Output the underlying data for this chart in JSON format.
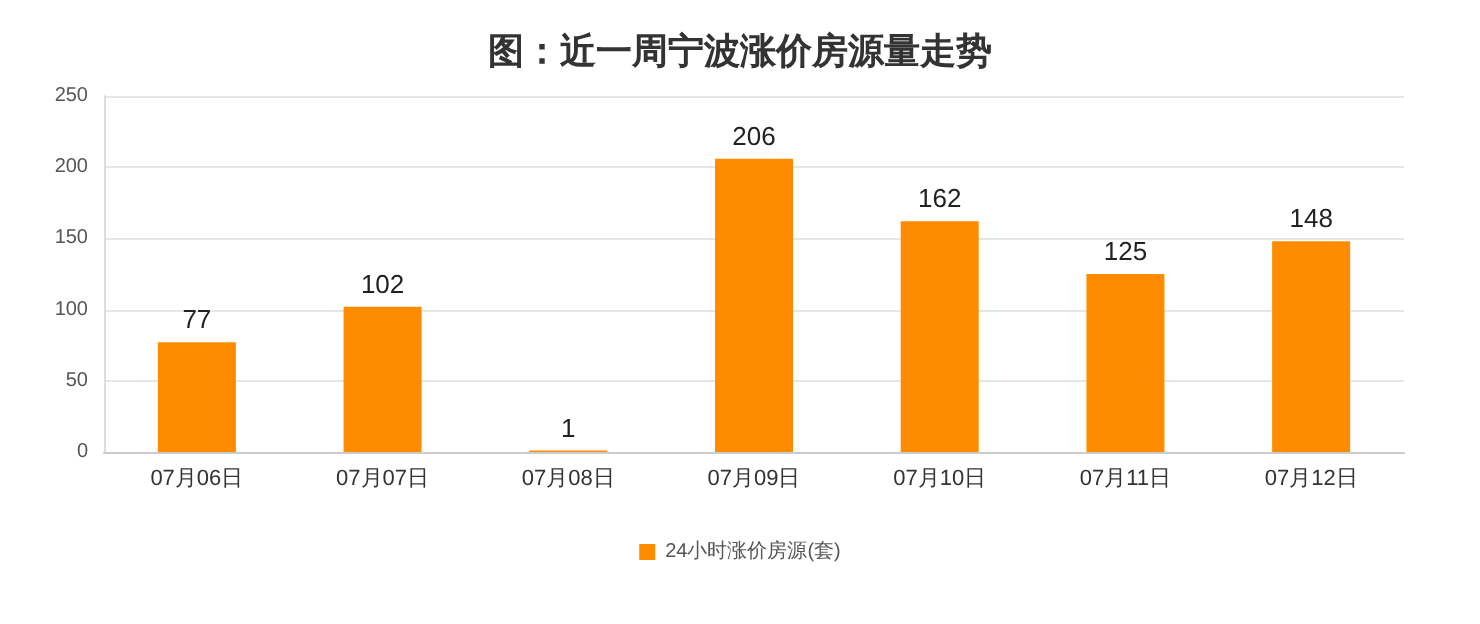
{
  "chart_data": {
    "type": "bar",
    "title": "图：近一周宁波涨价房源量走势",
    "categories": [
      "07月06日",
      "07月07日",
      "07月08日",
      "07月09日",
      "07月10日",
      "07月11日",
      "07月12日"
    ],
    "series": [
      {
        "name": "24小时涨价房源(套)",
        "color": "#ff8c00",
        "values": [
          77,
          102,
          1,
          206,
          162,
          125,
          148
        ]
      }
    ],
    "ylim": [
      0,
      250
    ],
    "yticks": [
      0,
      50,
      100,
      150,
      200,
      250
    ],
    "grid": "y",
    "legend": "bottom",
    "data_labels": true
  }
}
